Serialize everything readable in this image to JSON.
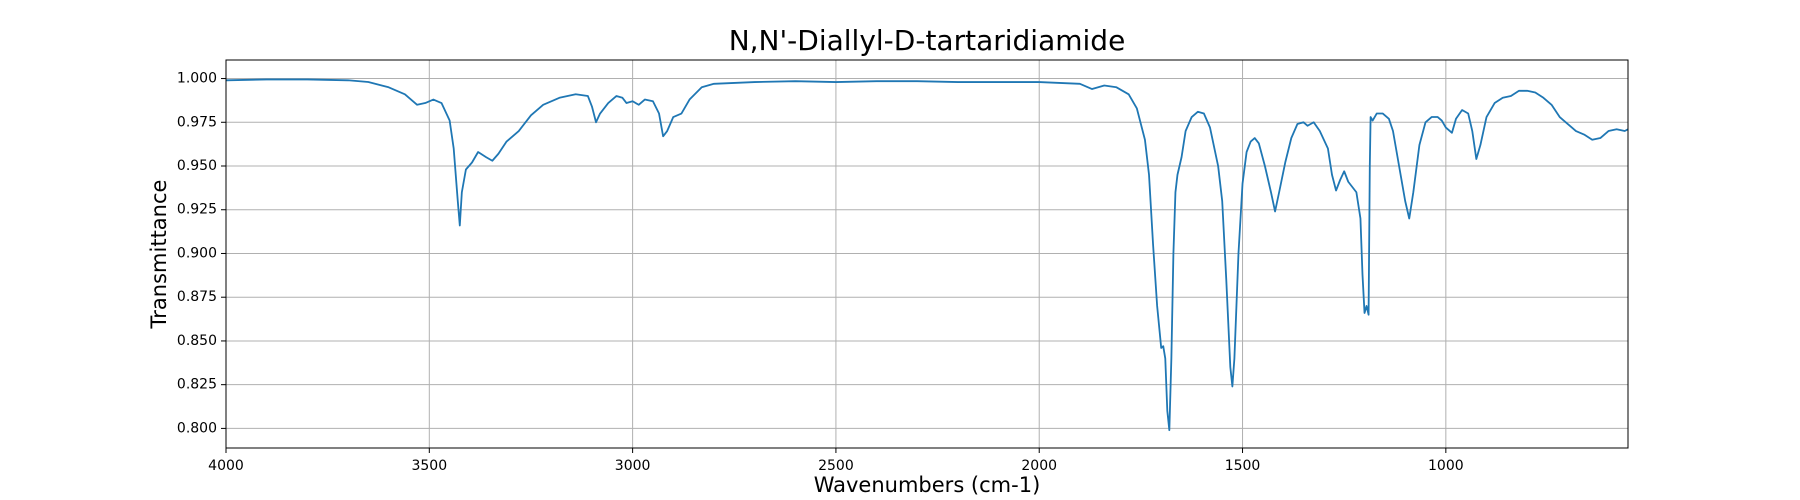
{
  "chart_data": {
    "type": "line",
    "title": "N,N'-Diallyl-D-tartaridiamide",
    "x_label": "Wavenumbers (cm-1)",
    "y_label": "Transmittance",
    "x": [
      4000,
      3900,
      3800,
      3700,
      3650,
      3600,
      3560,
      3530,
      3510,
      3490,
      3470,
      3450,
      3440,
      3430,
      3425,
      3420,
      3410,
      3395,
      3380,
      3360,
      3345,
      3330,
      3310,
      3280,
      3250,
      3220,
      3180,
      3140,
      3110,
      3100,
      3090,
      3080,
      3060,
      3040,
      3025,
      3015,
      3000,
      2985,
      2970,
      2950,
      2935,
      2925,
      2915,
      2900,
      2880,
      2860,
      2830,
      2800,
      2700,
      2600,
      2500,
      2400,
      2300,
      2200,
      2100,
      2000,
      1900,
      1870,
      1840,
      1810,
      1780,
      1760,
      1740,
      1730,
      1720,
      1710,
      1700,
      1695,
      1690,
      1685,
      1680,
      1675,
      1670,
      1665,
      1660,
      1650,
      1640,
      1625,
      1610,
      1595,
      1580,
      1560,
      1550,
      1540,
      1530,
      1525,
      1520,
      1510,
      1500,
      1490,
      1480,
      1470,
      1460,
      1445,
      1430,
      1420,
      1410,
      1395,
      1380,
      1365,
      1350,
      1340,
      1325,
      1310,
      1290,
      1280,
      1270,
      1260,
      1250,
      1240,
      1230,
      1220,
      1210,
      1205,
      1200,
      1195,
      1190,
      1187,
      1185,
      1180,
      1170,
      1155,
      1140,
      1130,
      1115,
      1100,
      1090,
      1080,
      1065,
      1050,
      1035,
      1020,
      1010,
      1000,
      985,
      975,
      960,
      945,
      935,
      925,
      915,
      900,
      880,
      860,
      840,
      820,
      800,
      780,
      760,
      740,
      720,
      700,
      680,
      660,
      640,
      620,
      600,
      580,
      560,
      552
    ],
    "series": [
      {
        "name": "Transmittance",
        "color": "#1f77b4",
        "values": [
          0.999,
          0.9995,
          0.9995,
          0.999,
          0.998,
          0.995,
          0.991,
          0.985,
          0.986,
          0.988,
          0.986,
          0.976,
          0.96,
          0.93,
          0.916,
          0.935,
          0.948,
          0.952,
          0.958,
          0.955,
          0.953,
          0.957,
          0.964,
          0.97,
          0.979,
          0.985,
          0.989,
          0.991,
          0.99,
          0.984,
          0.975,
          0.98,
          0.986,
          0.99,
          0.989,
          0.986,
          0.987,
          0.985,
          0.988,
          0.987,
          0.98,
          0.967,
          0.97,
          0.978,
          0.98,
          0.988,
          0.995,
          0.997,
          0.998,
          0.9985,
          0.998,
          0.9985,
          0.9985,
          0.998,
          0.998,
          0.998,
          0.997,
          0.994,
          0.996,
          0.995,
          0.991,
          0.983,
          0.965,
          0.945,
          0.905,
          0.87,
          0.846,
          0.847,
          0.84,
          0.81,
          0.799,
          0.84,
          0.9,
          0.935,
          0.945,
          0.955,
          0.97,
          0.978,
          0.981,
          0.98,
          0.972,
          0.95,
          0.93,
          0.885,
          0.835,
          0.824,
          0.84,
          0.9,
          0.94,
          0.958,
          0.964,
          0.966,
          0.963,
          0.95,
          0.935,
          0.924,
          0.935,
          0.952,
          0.966,
          0.974,
          0.975,
          0.973,
          0.975,
          0.97,
          0.96,
          0.945,
          0.936,
          0.942,
          0.947,
          0.941,
          0.938,
          0.935,
          0.92,
          0.888,
          0.866,
          0.87,
          0.865,
          0.95,
          0.978,
          0.976,
          0.98,
          0.98,
          0.977,
          0.97,
          0.95,
          0.93,
          0.92,
          0.935,
          0.962,
          0.975,
          0.978,
          0.978,
          0.976,
          0.972,
          0.969,
          0.977,
          0.982,
          0.98,
          0.97,
          0.954,
          0.962,
          0.978,
          0.986,
          0.989,
          0.99,
          0.993,
          0.993,
          0.992,
          0.989,
          0.985,
          0.978,
          0.974,
          0.97,
          0.968,
          0.965,
          0.966,
          0.97,
          0.971,
          0.97,
          0.971
        ]
      }
    ],
    "xlim": [
      4000,
      552
    ],
    "ylim": [
      0.7888,
      1.0106
    ],
    "xticks": [
      4000,
      3500,
      3000,
      2500,
      2000,
      1500,
      1000
    ],
    "yticks": [
      {
        "value": 0.8,
        "label": "0.800"
      },
      {
        "value": 0.825,
        "label": "0.825"
      },
      {
        "value": 0.85,
        "label": "0.850"
      },
      {
        "value": 0.875,
        "label": "0.875"
      },
      {
        "value": 0.9,
        "label": "0.900"
      },
      {
        "value": 0.925,
        "label": "0.925"
      },
      {
        "value": 0.95,
        "label": "0.950"
      },
      {
        "value": 0.975,
        "label": "0.975"
      },
      {
        "value": 1.0,
        "label": "1.000"
      }
    ],
    "grid": true
  }
}
